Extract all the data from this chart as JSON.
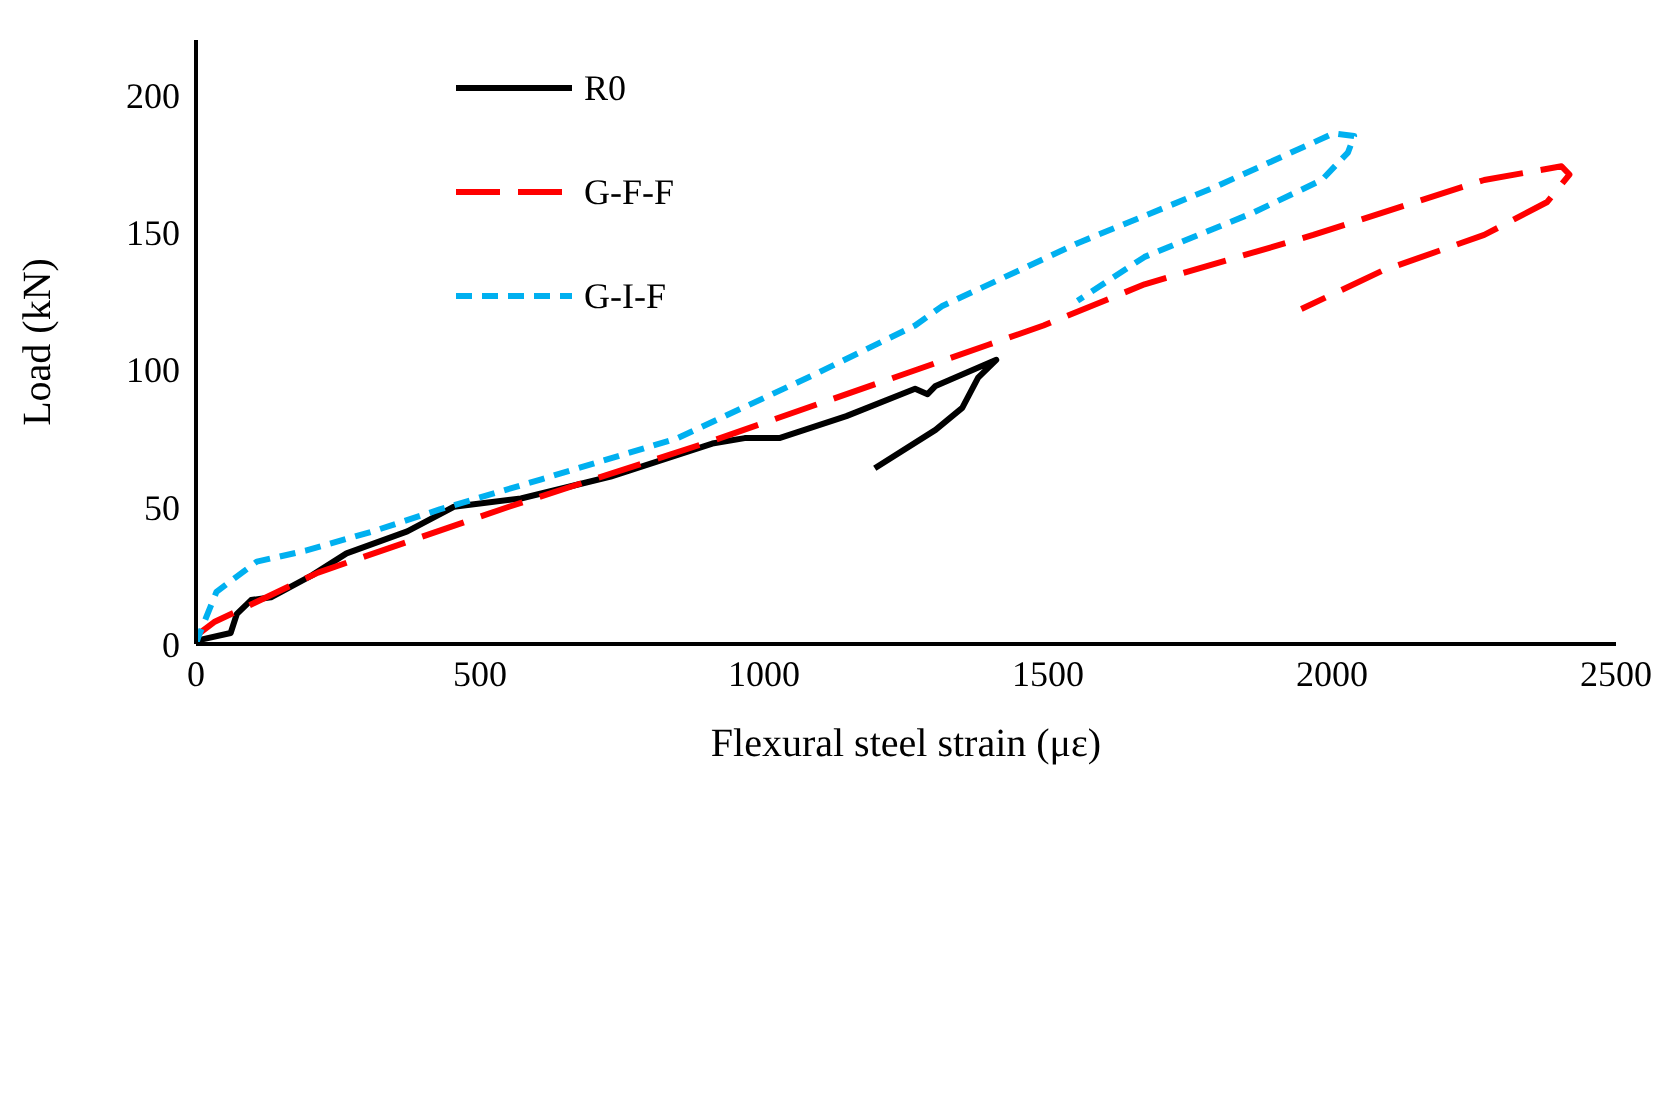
{
  "chart_data": {
    "type": "line",
    "xlabel": "Flexural steel strain (με)",
    "ylabel": "Load (kN)",
    "xlim": [
      0,
      2500
    ],
    "xticks": [
      0,
      500,
      1000,
      1500,
      2000,
      2500
    ],
    "ylim": [
      0,
      220
    ],
    "yticks": [
      0,
      50,
      100,
      150,
      200
    ],
    "grid": false,
    "legend": "top left",
    "marker": "none",
    "series": [
      {
        "name": "R0",
        "color": "#000000",
        "line_style": "solid",
        "x": [
          0,
          7,
          61,
          72,
          97,
          132,
          204,
          265,
          372,
          454,
          572,
          730,
          909,
          966,
          1027,
          1145,
          1266,
          1288,
          1302,
          1409,
          1377,
          1349,
          1302,
          1195
        ],
        "values": [
          0,
          1.5,
          4,
          11,
          16,
          17,
          25,
          33,
          41,
          50,
          53,
          61,
          73,
          75,
          75,
          83,
          93,
          91,
          94,
          103.5,
          97,
          86,
          78,
          64
        ]
      },
      {
        "name": "G-F-F",
        "color": "#ff0000",
        "line_style": "dashed",
        "x": [
          0,
          32,
          215,
          551,
          909,
          1395,
          1492,
          1670,
          1967,
          2268,
          2404,
          2418,
          2379,
          2268,
          2089,
          1946
        ],
        "values": [
          3,
          8,
          26,
          50,
          74,
          109,
          116,
          131,
          149,
          169,
          174,
          171,
          161,
          149,
          136,
          122
        ]
      },
      {
        "name": "G-I-F",
        "color": "#00b0f0",
        "line_style": "dotted",
        "x": [
          0,
          4,
          36,
          107,
          193,
          311,
          429,
          608,
          848,
          1087,
          1266,
          1313,
          1552,
          1789,
          2003,
          2039,
          2028,
          1982,
          1860,
          1670,
          1552
        ],
        "values": [
          0,
          2.5,
          19,
          30,
          34,
          41,
          49,
          60,
          75,
          98,
          116,
          123,
          146,
          166,
          186,
          185,
          179,
          169,
          157,
          141,
          125
        ]
      }
    ]
  }
}
